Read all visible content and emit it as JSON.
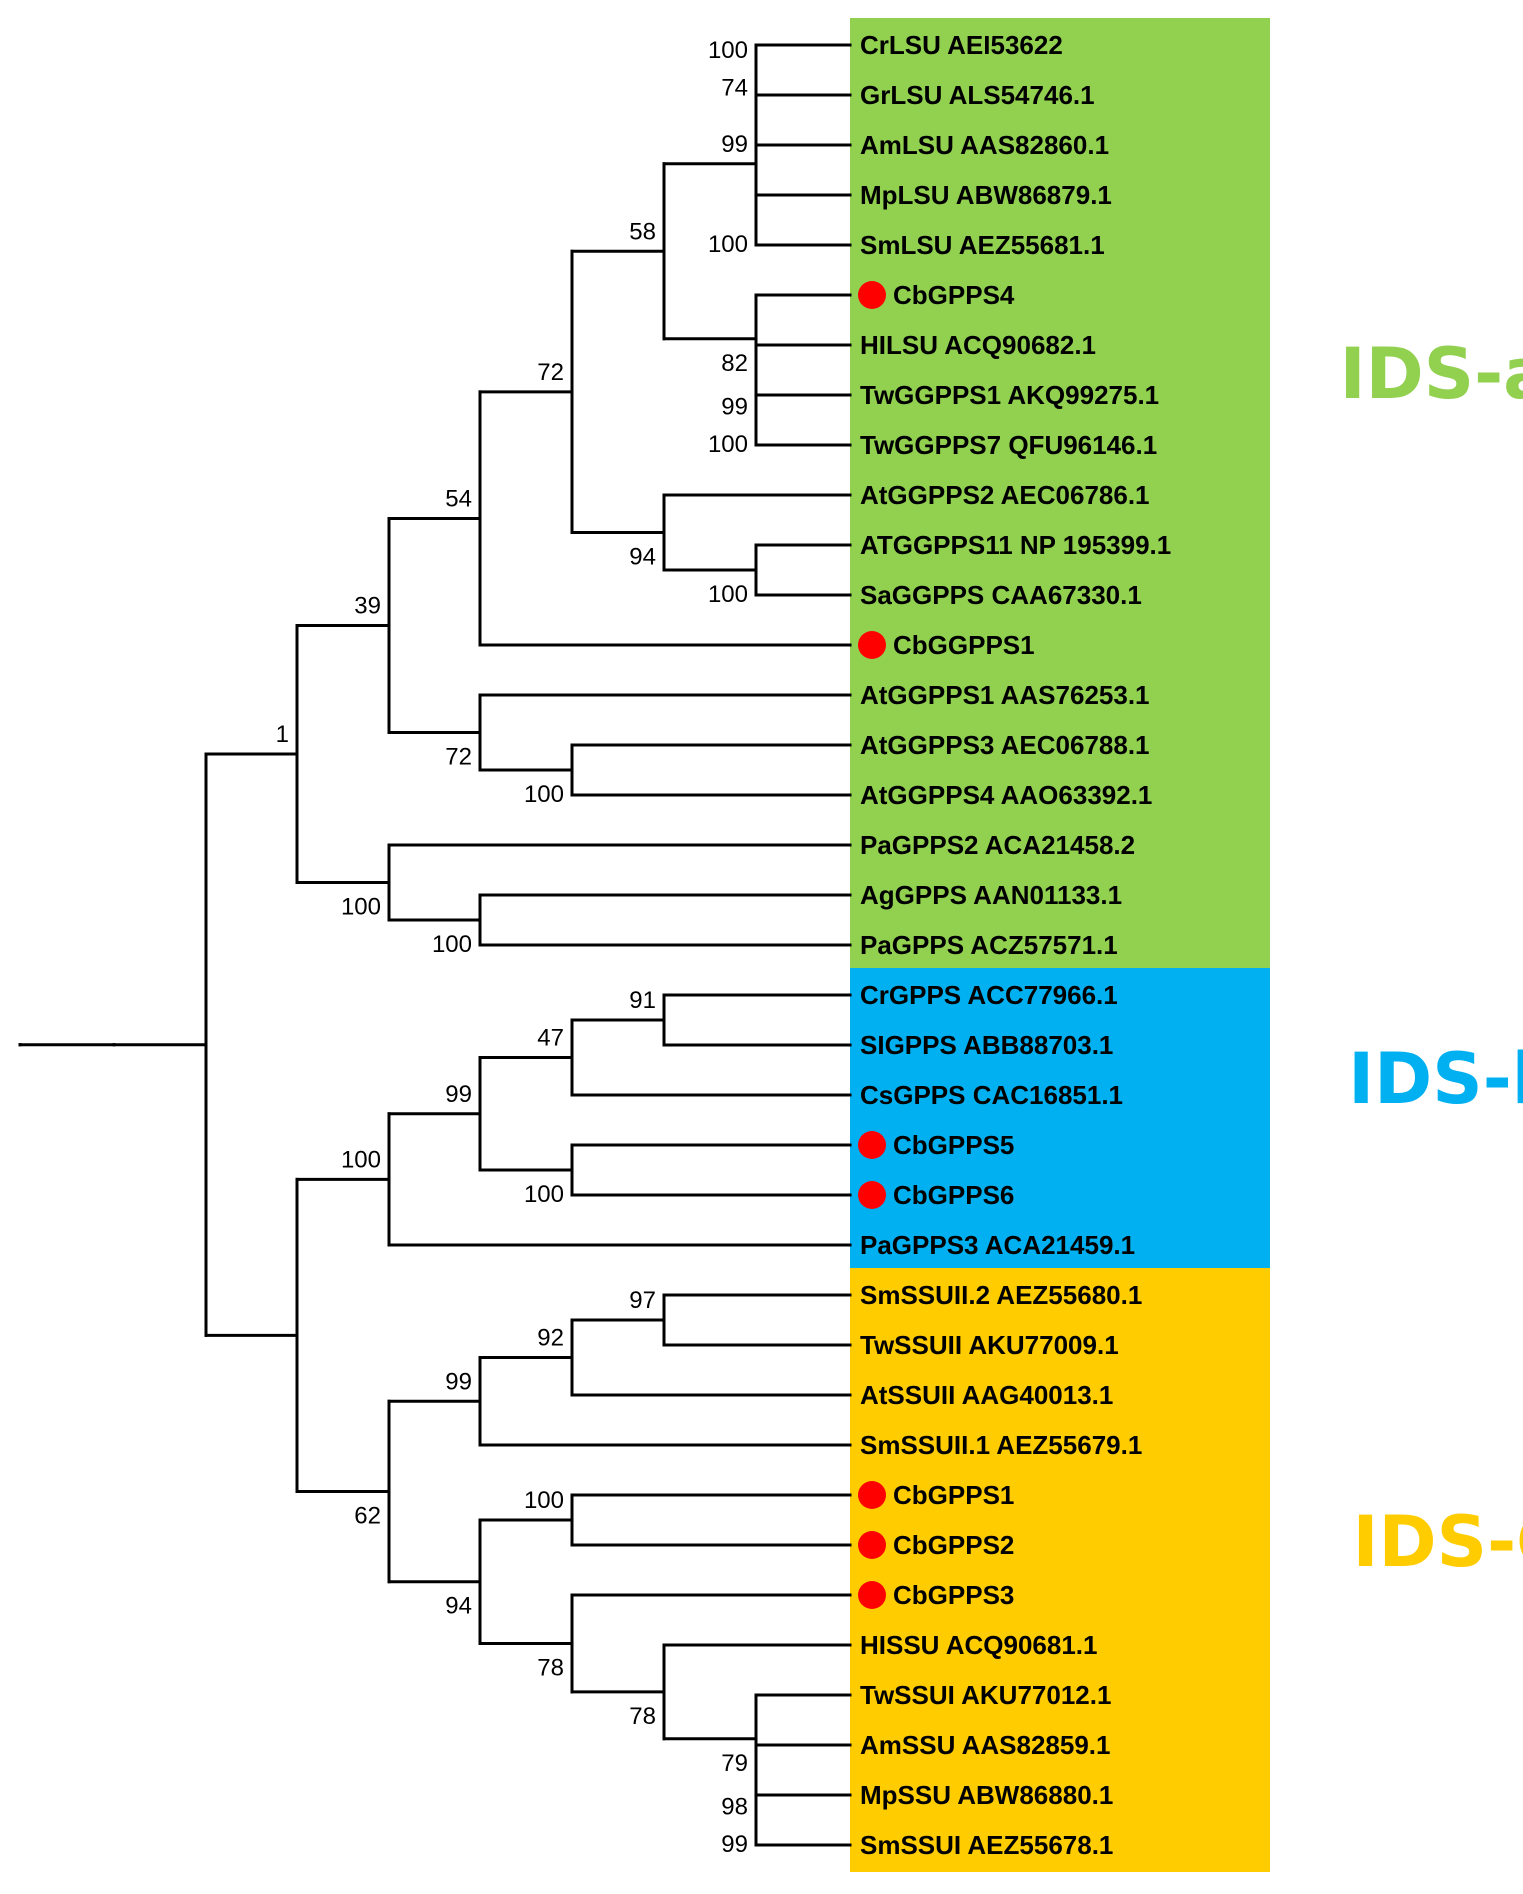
{
  "figure": {
    "type": "phylogenetic-tree",
    "leaves": [
      {
        "label": "CrLSU AEI53622",
        "clade": "a",
        "marked": false
      },
      {
        "label": "GrLSU ALS54746.1",
        "clade": "a",
        "marked": false
      },
      {
        "label": "AmLSU AAS82860.1",
        "clade": "a",
        "marked": false
      },
      {
        "label": "MpLSU ABW86879.1",
        "clade": "a",
        "marked": false
      },
      {
        "label": "SmLSU AEZ55681.1",
        "clade": "a",
        "marked": false
      },
      {
        "label": "CbGPPS4",
        "clade": "a",
        "marked": true
      },
      {
        "label": "HILSU ACQ90682.1",
        "clade": "a",
        "marked": false
      },
      {
        "label": "TwGGPPS1 AKQ99275.1",
        "clade": "a",
        "marked": false
      },
      {
        "label": "TwGGPPS7 QFU96146.1",
        "clade": "a",
        "marked": false
      },
      {
        "label": "AtGGPPS2 AEC06786.1",
        "clade": "a",
        "marked": false
      },
      {
        "label": "ATGGPPS11 NP 195399.1",
        "clade": "a",
        "marked": false
      },
      {
        "label": "SaGGPPS CAA67330.1",
        "clade": "a",
        "marked": false
      },
      {
        "label": "CbGGPPS1",
        "clade": "a",
        "marked": true
      },
      {
        "label": "AtGGPPS1 AAS76253.1",
        "clade": "a",
        "marked": false
      },
      {
        "label": "AtGGPPS3 AEC06788.1",
        "clade": "a",
        "marked": false
      },
      {
        "label": "AtGGPPS4 AAO63392.1",
        "clade": "a",
        "marked": false
      },
      {
        "label": "PaGPPS2 ACA21458.2",
        "clade": "a",
        "marked": false
      },
      {
        "label": "AgGPPS AAN01133.1",
        "clade": "a",
        "marked": false
      },
      {
        "label": "PaGPPS ACZ57571.1",
        "clade": "a",
        "marked": false
      },
      {
        "label": "CrGPPS ACC77966.1",
        "clade": "b",
        "marked": false
      },
      {
        "label": "SIGPPS ABB88703.1",
        "clade": "b",
        "marked": false
      },
      {
        "label": "CsGPPS CAC16851.1",
        "clade": "b",
        "marked": false
      },
      {
        "label": "CbGPPS5",
        "clade": "b",
        "marked": true
      },
      {
        "label": "CbGPPS6",
        "clade": "b",
        "marked": true
      },
      {
        "label": "PaGPPS3 ACA21459.1",
        "clade": "b",
        "marked": false
      },
      {
        "label": "SmSSUII.2 AEZ55680.1",
        "clade": "c",
        "marked": false
      },
      {
        "label": "TwSSUII AKU77009.1",
        "clade": "c",
        "marked": false
      },
      {
        "label": "AtSSUII AAG40013.1",
        "clade": "c",
        "marked": false
      },
      {
        "label": "SmSSUII.1 AEZ55679.1",
        "clade": "c",
        "marked": false
      },
      {
        "label": "CbGPPS1",
        "clade": "c",
        "marked": true
      },
      {
        "label": "CbGPPS2",
        "clade": "c",
        "marked": true
      },
      {
        "label": "CbGPPS3",
        "clade": "c",
        "marked": true
      },
      {
        "label": "HISSU ACQ90681.1",
        "clade": "c",
        "marked": false
      },
      {
        "label": "TwSSUI AKU77012.1",
        "clade": "c",
        "marked": false
      },
      {
        "label": "AmSSU AAS82859.1",
        "clade": "c",
        "marked": false
      },
      {
        "label": "MpSSU ABW86880.1",
        "clade": "c",
        "marked": false
      },
      {
        "label": "SmSSUI AEZ55678.1",
        "clade": "c",
        "marked": false
      }
    ],
    "tree": "(((((((((((CrLSU AEI53622,GrLSU ALS54746.1)100,AmLSU AAS82860.1)74,(MpLSU ABW86879.1,SmLSU AEZ55681.1)100)99,(CbGPPS4,(HILSU ACQ90682.1,(TwGGPPS1 AKQ99275.1,TwGGPPS7 QFU96146.1)100)99)82)58,(AtGGPPS2 AEC06786.1,(ATGGPPS11 NP 195399.1,SaGGPPS CAA67330.1)100)94)72,CbGGPPS1)54,(AtGGPPS1 AAS76253.1,(AtGGPPS3 AEC06788.1,AtGGPPS4 AAO63392.1)100)72)39,(PaGPPS2 ACA21458.2,(AgGPPS AAN01133.1,PaGPPS ACZ57571.1)100)100)1,(((((CrGPPS ACC77966.1,SIGPPS ABB88703.1)91,CsGPPS CAC16851.1)47,(CbGPPS5,CbGPPS6)100)99,PaGPPS3 ACA21459.1)100,((((SmSSUII.2 AEZ55680.1,TwSSUII AKU77009.1)97,AtSSUII AAG40013.1)92,SmSSUII.1 AEZ55679.1)99,((CbGPPS1,CbGPPS2)100,(CbGPPS3,(HISSU ACQ90681.1,(TwSSUI AKU77012.1,(AmSSU AAS82859.1,(MpSSU ABW86880.1,SmSSUI AEZ55678.1)99)98)79)78)78)94)62))",
    "clades": [
      {
        "id": "a",
        "label": "IDS-a",
        "color": "#92d050",
        "text_color": "#92d050"
      },
      {
        "id": "b",
        "label": "IDS-b",
        "color": "#00b0f0",
        "text_color": "#00b0f0"
      },
      {
        "id": "c",
        "label": "IDS-C",
        "color": "#ffcc00",
        "text_color": "#ffcc00"
      }
    ],
    "marker_color": "#ff0000"
  }
}
